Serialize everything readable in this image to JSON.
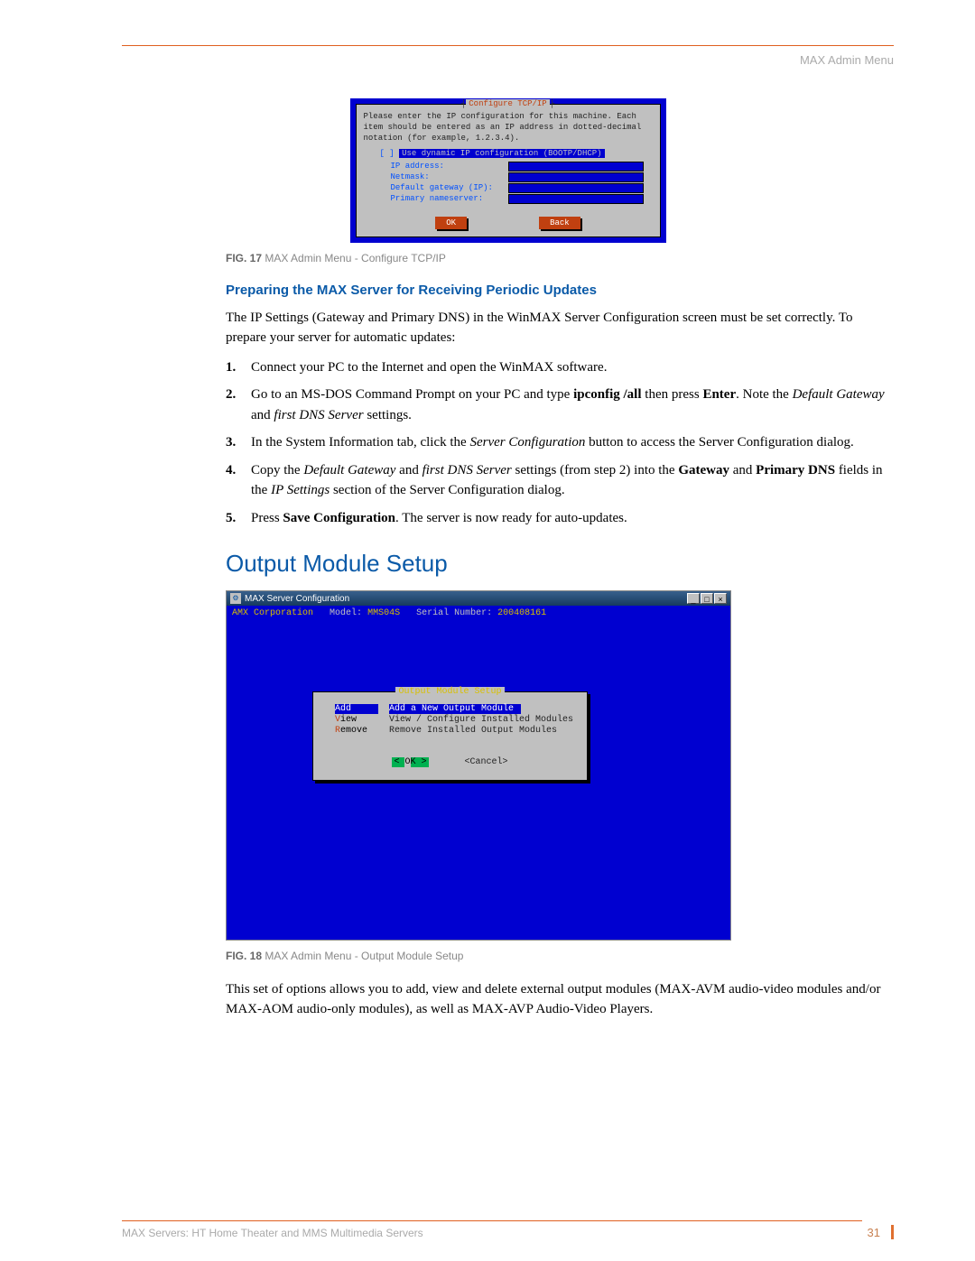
{
  "header": {
    "label": "MAX Admin Menu"
  },
  "fig17": {
    "title": "Configure TCP/IP",
    "instructions": "Please enter the IP configuration for this machine. Each item should be entered as an IP address in dotted-decimal notation (for example, 1.2.3.4).",
    "dynamic_label": "Use dynamic IP configuration (BOOTP/DHCP)",
    "fields": {
      "ip": "IP address:",
      "netmask": "Netmask:",
      "gateway": "Default gateway (IP):",
      "nameserver": "Primary nameserver:"
    },
    "ok": "OK",
    "back": "Back",
    "caption_bold": "FIG. 17",
    "caption_rest": "  MAX Admin Menu - Configure TCP/IP",
    "colors": {
      "blue_bg": "#0000d0",
      "panel_bg": "#c0c0c0",
      "title_color": "#c04010",
      "label_color": "#0050ff",
      "btn_bg": "#c04010"
    }
  },
  "section1": {
    "heading": "Preparing the MAX Server for Receiving Periodic Updates",
    "intro": "The IP Settings (Gateway and Primary DNS) in the WinMAX Server Configuration screen must be set correctly. To prepare your server for automatic updates:",
    "steps": {
      "s1": "Connect your PC to the Internet and open the WinMAX software.",
      "s2_a": "Go to an MS-DOS Command Prompt on your PC and type ",
      "s2_b": "ipconfig /all",
      "s2_c": " then press ",
      "s2_d": "Enter",
      "s2_e": ". Note the ",
      "s2_f": "Default Gateway",
      "s2_g": " and ",
      "s2_h": "first DNS Server",
      "s2_i": " settings.",
      "s3_a": "In the System Information tab, click the ",
      "s3_b": "Server Configuration",
      "s3_c": " button to access the Server Configuration dialog.",
      "s4_a": "Copy the ",
      "s4_b": "Default Gateway",
      "s4_c": " and ",
      "s4_d": "first DNS Server",
      "s4_e": " settings (from step 2) into the ",
      "s4_f": "Gateway",
      "s4_g": " and ",
      "s4_h": "Primary DNS",
      "s4_i": " fields in the ",
      "s4_j": "IP Settings",
      "s4_k": " section of the Server Configuration dialog.",
      "s5_a": "Press ",
      "s5_b": "Save Configuration",
      "s5_c": ". The server is now ready for auto-updates."
    }
  },
  "section2": {
    "heading": "Output Module Setup"
  },
  "fig18": {
    "window_title": "MAX Server Configuration",
    "toprow": {
      "corp": "AMX Corporation",
      "model_label": "Model:",
      "model_value": "MMS04S",
      "serial_label": "Serial Number:",
      "serial_value": "200408161"
    },
    "dialog_title": "Output Module Setup",
    "menu": {
      "add_key": "Add",
      "add_desc": "Add a New Output Module",
      "view_key_hot": "V",
      "view_key_rest": "iew",
      "view_desc": "View / Configure Installed Modules",
      "remove_key_hot": "R",
      "remove_key_rest": "emove",
      "remove_desc": "Remove Installed Output Modules"
    },
    "ok_full": "<  OK  >",
    "cancel": "<Cancel>",
    "caption_bold": "FIG. 18",
    "caption_rest": "  MAX Admin Menu - Output Module Setup",
    "colors": {
      "blue_bg": "#0000d0",
      "panel_bg": "#c0c0c0",
      "yellow": "#d8c000",
      "hot": "#c04010",
      "ok_bg": "#00b050"
    }
  },
  "trailing": "This set of options allows you to add, view and delete external output modules (MAX-AVM audio-video modules and/or MAX-AOM audio-only modules), as well as MAX-AVP Audio-Video Players.",
  "footer": {
    "text": "MAX Servers: HT Home Theater and MMS Multimedia Servers",
    "page": "31"
  },
  "palette": {
    "accent_orange": "#e06020",
    "heading_blue": "#0a5aa8",
    "caption_gray": "#888888"
  }
}
